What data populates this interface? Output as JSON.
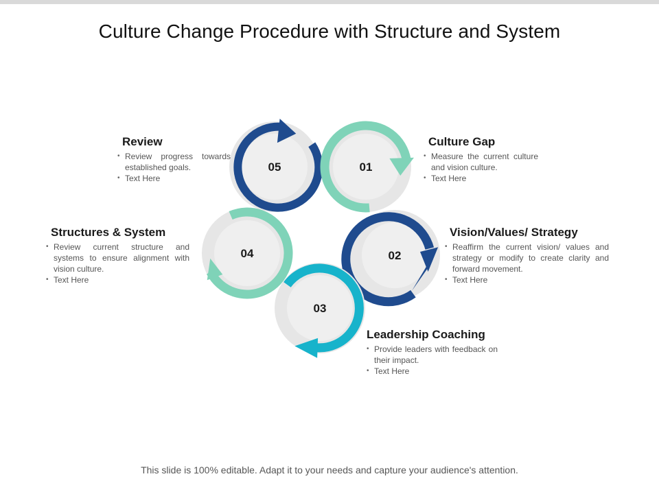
{
  "title": "Culture Change Procedure with Structure and System",
  "footer": "This slide is 100% editable. Adapt it to your needs and capture your audience's attention.",
  "colors": {
    "dark_blue": "#1f4b8e",
    "teal_green": "#7fd3b8",
    "cyan": "#17b3cb",
    "circle_bg": "#efefef",
    "halo": "#e6e6e6"
  },
  "steps": [
    {
      "number": "01",
      "heading": "Culture Gap",
      "color": "teal_green",
      "bullets": [
        "Measure the current culture and vision culture.",
        "Text Here"
      ]
    },
    {
      "number": "02",
      "heading": "Vision/Values/ Strategy",
      "color": "dark_blue",
      "bullets": [
        "Reaffirm the current vision/ values and strategy or modify to create clarity and forward movement.",
        "Text Here"
      ]
    },
    {
      "number": "03",
      "heading": "Leadership Coaching",
      "color": "cyan",
      "bullets": [
        "Provide leaders with feedback on their impact.",
        "Text Here"
      ]
    },
    {
      "number": "04",
      "heading": "Structures & System",
      "color": "teal_green",
      "bullets": [
        "Review current structure and systems to ensure alignment with vision culture.",
        "Text Here"
      ]
    },
    {
      "number": "05",
      "heading": "Review",
      "color": "dark_blue",
      "bullets": [
        "Review progress towards established goals.",
        "Text Here"
      ]
    }
  ]
}
